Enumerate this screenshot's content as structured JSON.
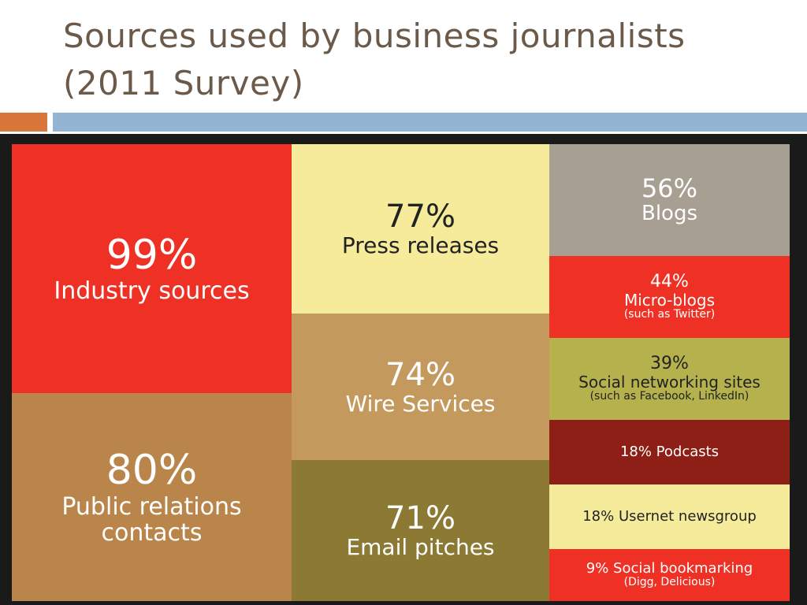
{
  "slide": {
    "title_line1": "Sources used by business journalists",
    "title_line2": "(2011 Survey)",
    "accent_orange": "#d9773b",
    "accent_blue": "#93b4d2",
    "frame_color": "#1a1a1a"
  },
  "chart_data": {
    "type": "treemap",
    "unit": "%",
    "items": [
      {
        "value": 99,
        "pct": "99%",
        "label": "Industry sources",
        "sub": "",
        "color": "#ee3124",
        "text_color": "#ffffff",
        "size": "xl"
      },
      {
        "value": 80,
        "pct": "80%",
        "label": "Public relations",
        "label2": "contacts",
        "sub": "",
        "color": "#b9854a",
        "text_color": "#ffffff",
        "size": "xl"
      },
      {
        "value": 77,
        "pct": "77%",
        "label": "Press releases",
        "sub": "",
        "color": "#f5eb9a",
        "text_color": "#222222",
        "size": "l"
      },
      {
        "value": 74,
        "pct": "74%",
        "label": "Wire Services",
        "sub": "",
        "color": "#c4995e",
        "text_color": "#ffffff",
        "size": "l"
      },
      {
        "value": 71,
        "pct": "71%",
        "label": "Email pitches",
        "sub": "",
        "color": "#8c7a34",
        "text_color": "#ffffff",
        "size": "l"
      },
      {
        "value": 56,
        "pct": "56%",
        "label": "Blogs",
        "sub": "",
        "color": "#a89f93",
        "text_color": "#ffffff",
        "size": "m"
      },
      {
        "value": 44,
        "pct": "44%",
        "label": "Micro-blogs",
        "sub": "(such as Twitter)",
        "color": "#ee3124",
        "text_color": "#ffffff",
        "size": "s"
      },
      {
        "value": 39,
        "pct": "39%",
        "label": "Social networking sites",
        "sub": "(such as Facebook, LinkedIn)",
        "color": "#b5b24e",
        "text_color": "#222222",
        "size": "s"
      },
      {
        "value": 18,
        "pct": "",
        "label": "18% Podcasts",
        "sub": "",
        "color": "#8e1f17",
        "text_color": "#ffffff",
        "size": "xs"
      },
      {
        "value": 18,
        "pct": "",
        "label": "18% Usernet newsgroup",
        "sub": "",
        "color": "#f5eb9a",
        "text_color": "#222222",
        "size": "xs"
      },
      {
        "value": 9,
        "pct": "",
        "label": "9% Social bookmarking",
        "sub": "(Digg, Delicious)",
        "color": "#ee3124",
        "text_color": "#ffffff",
        "size": "xs"
      }
    ]
  }
}
